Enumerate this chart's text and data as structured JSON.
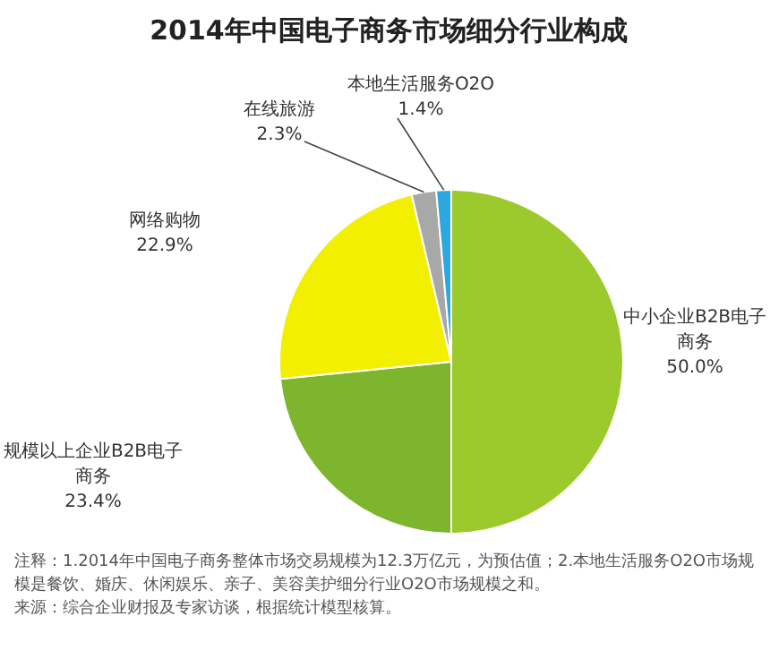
{
  "chart_data": {
    "type": "pie",
    "title": "2014年中国电子商务市场细分行业构成",
    "categories": [
      "中小企业B2B电子商务",
      "规模以上企业B2B电子商务",
      "网络购物",
      "在线旅游",
      "本地生活服务O2O"
    ],
    "values": [
      50.0,
      23.4,
      22.9,
      2.3,
      1.4
    ],
    "value_labels": [
      "50.0%",
      "23.4%",
      "22.9%",
      "2.3%",
      "1.4%"
    ],
    "colors": [
      "#9cc92c",
      "#7db52e",
      "#f2f000",
      "#a8a8a8",
      "#2ba8e0"
    ],
    "annotations": [
      "注释：1.2014年中国电子商务整体市场交易规模为12.3万亿元，为预估值；2.本地生活服务O2O市场规模是餐饮、婚庆、休闲娱乐、亲子、美容美护细分行业O2O市场规模之和。",
      "来源：综合企业财报及专家访谈，根据统计模型核算。"
    ]
  }
}
